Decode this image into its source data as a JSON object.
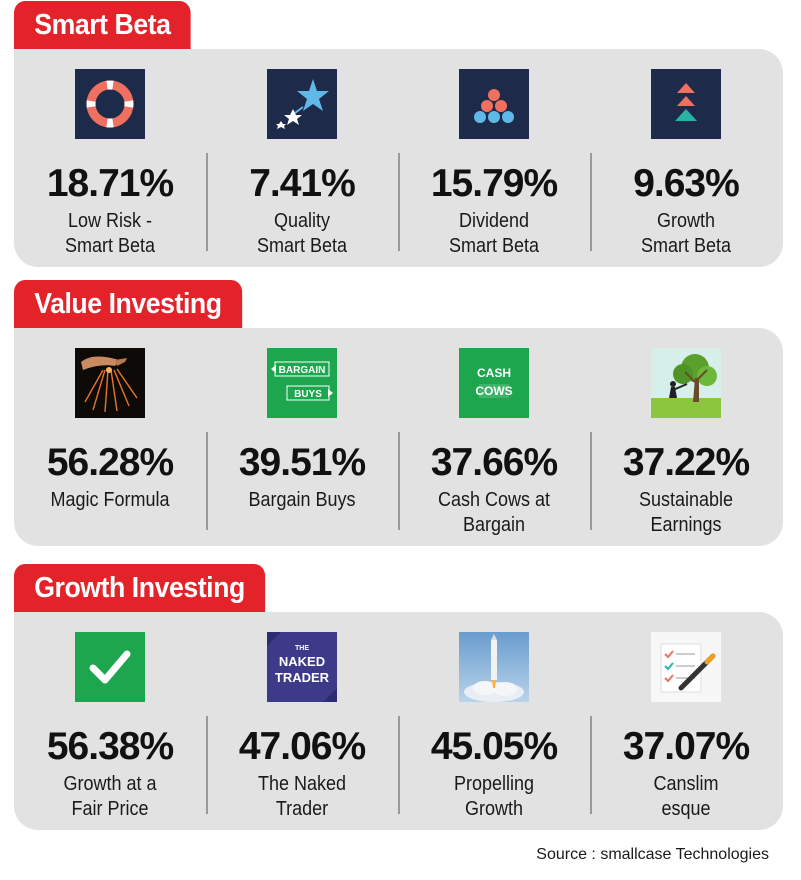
{
  "sections": [
    {
      "title": "Smart Beta",
      "items": [
        {
          "value": "18.71%",
          "label_lines": [
            "Low Risk -",
            "Smart Beta"
          ],
          "icon": "lifebuoy-icon"
        },
        {
          "value": "7.41%",
          "label_lines": [
            "Quality",
            "Smart Beta"
          ],
          "icon": "shooting-star-icon"
        },
        {
          "value": "15.79%",
          "label_lines": [
            "Dividend",
            "Smart Beta"
          ],
          "icon": "dots-pyramid-icon"
        },
        {
          "value": "9.63%",
          "label_lines": [
            "Growth",
            "Smart Beta"
          ],
          "icon": "stacked-arrows-icon"
        }
      ]
    },
    {
      "title": "Value Investing",
      "items": [
        {
          "value": "56.28%",
          "label_lines": [
            "Magic Formula"
          ],
          "icon": "magic-hand-icon"
        },
        {
          "value": "39.51%",
          "label_lines": [
            "Bargain Buys"
          ],
          "icon": "bargain-buys-tag-icon",
          "icon_text": [
            "BARGAIN",
            "BUYS"
          ]
        },
        {
          "value": "37.66%",
          "label_lines": [
            "Cash Cows at",
            "Bargain"
          ],
          "icon": "cash-cows-icon",
          "icon_text": [
            "CASH",
            "COWS"
          ]
        },
        {
          "value": "37.22%",
          "label_lines": [
            "Sustainable",
            "Earnings"
          ],
          "icon": "tree-icon"
        }
      ]
    },
    {
      "title": "Growth Investing",
      "items": [
        {
          "value": "56.38%",
          "label_lines": [
            "Growth at a",
            "Fair Price"
          ],
          "icon": "checkmark-icon"
        },
        {
          "value": "47.06%",
          "label_lines": [
            "The Naked",
            "Trader"
          ],
          "icon": "naked-trader-logo-icon",
          "icon_text": [
            "THE",
            "NAKED",
            "TRADER"
          ]
        },
        {
          "value": "45.05%",
          "label_lines": [
            "Propelling",
            "Growth"
          ],
          "icon": "rocket-launch-icon"
        },
        {
          "value": "37.07%",
          "label_lines": [
            "Canslim",
            "esque"
          ],
          "icon": "checklist-pen-icon"
        }
      ]
    }
  ],
  "source": "Source : smallcase Technologies",
  "colors": {
    "accent": "#e32229",
    "panel": "#e2e2e2",
    "navy": "#1d2a4a",
    "teal": "#26b5a5",
    "coral": "#f07060",
    "green": "#1ea64f"
  }
}
